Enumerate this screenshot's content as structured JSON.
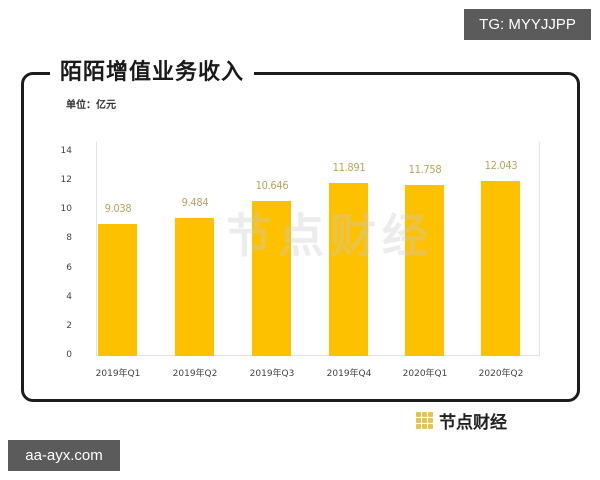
{
  "overlays": {
    "top_tag": "TG: MYYJJPP",
    "bottom_tag": "aa-ayx.com"
  },
  "header": {
    "title": "陌陌增值业务收入",
    "unit": "单位：亿元"
  },
  "footer": {
    "brand": "节点财经",
    "brand_icon": "grid-dots-logo-icon"
  },
  "watermark": "节点财经",
  "colors": {
    "bar": "#fdc100",
    "label": "#b9a55c",
    "frame": "#1c1c1c"
  },
  "chart_data": {
    "type": "bar",
    "title": "陌陌增值业务收入",
    "subtitle": "单位：亿元",
    "xlabel": "",
    "ylabel": "亿元",
    "categories": [
      "2019年Q1",
      "2019年Q2",
      "2019年Q3",
      "2019年Q4",
      "2020年Q1",
      "2020年Q2"
    ],
    "values": [
      9.038,
      9.484,
      10.646,
      11.891,
      11.758,
      12.043
    ],
    "value_labels": [
      "9.038",
      "9.484",
      "10.646",
      "11.891",
      "11.758",
      "12.043"
    ],
    "ylim": [
      0,
      14
    ],
    "yticks": [
      "0",
      "2",
      "4",
      "6",
      "8",
      "10",
      "12",
      "14"
    ],
    "grid": false,
    "legend": null
  }
}
